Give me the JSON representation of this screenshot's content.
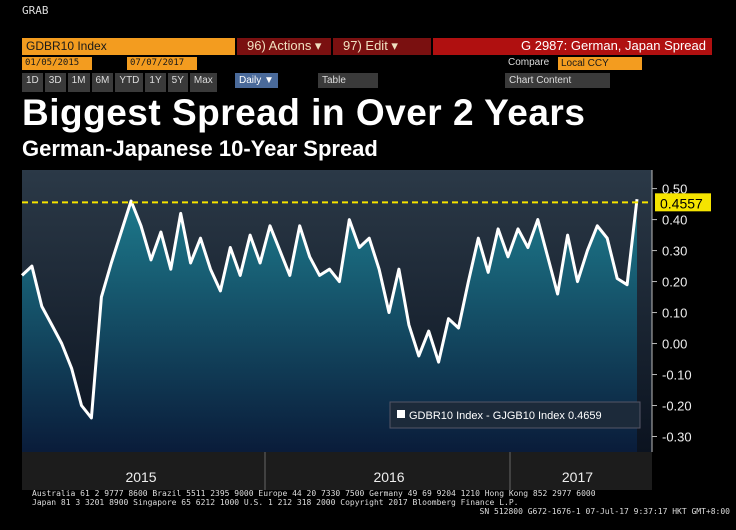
{
  "ui": {
    "grab": "GRAB",
    "ticker": "GDBR10 Index",
    "actions": "96) Actions ▾",
    "edit": "97) Edit ▾",
    "function": "G 2987: German, Japan Spread",
    "start_date": "01/05/2015",
    "end_date": "07/07/2017",
    "compare": "Compare",
    "currency": "Local CCY",
    "range_buttons": [
      "1D",
      "3D",
      "1M",
      "6M",
      "YTD",
      "1Y",
      "5Y",
      "Max"
    ],
    "frequency": "Daily ▼",
    "table": "Table",
    "chart_content": "Chart Content"
  },
  "chart_data": {
    "type": "line",
    "title": "Biggest Spread in Over 2 Years",
    "subtitle": "German-Japanese 10-Year Spread",
    "categories": [
      null,
      null,
      null,
      null,
      null,
      null,
      null,
      null,
      null,
      null,
      null,
      null,
      "2015",
      null,
      null,
      null,
      null,
      null,
      null,
      null,
      null,
      null,
      null,
      null,
      null,
      null,
      null,
      null,
      null,
      null,
      null,
      null,
      null,
      null,
      null,
      null,
      null,
      "2016",
      null,
      null,
      null,
      null,
      null,
      null,
      null,
      null,
      null,
      null,
      null,
      null,
      null,
      null,
      null,
      null,
      null,
      null,
      "2017",
      null,
      null,
      null,
      null,
      null,
      null
    ],
    "series": [
      {
        "name": "GDBR10 Index - GJGB10 Index",
        "color": "#ffffff",
        "values": [
          0.22,
          0.25,
          0.12,
          0.06,
          0.0,
          -0.08,
          -0.2,
          -0.24,
          0.15,
          0.26,
          0.36,
          0.46,
          0.38,
          0.27,
          0.36,
          0.24,
          0.42,
          0.26,
          0.34,
          0.24,
          0.17,
          0.31,
          0.22,
          0.35,
          0.26,
          0.38,
          0.3,
          0.22,
          0.38,
          0.28,
          0.22,
          0.24,
          0.2,
          0.4,
          0.31,
          0.34,
          0.24,
          0.1,
          0.24,
          0.06,
          -0.04,
          0.04,
          -0.06,
          0.08,
          0.05,
          0.2,
          0.34,
          0.23,
          0.37,
          0.28,
          0.37,
          0.31,
          0.4,
          0.28,
          0.16,
          0.35,
          0.2,
          0.3,
          0.38,
          0.34,
          0.21,
          0.19,
          0.4659
        ]
      }
    ],
    "ylim": [
      -0.35,
      0.56
    ],
    "yticks": [
      {
        "value": 0.5,
        "label": "0.50"
      },
      {
        "value": 0.4,
        "label": "0.40"
      },
      {
        "value": 0.3,
        "label": "0.30"
      },
      {
        "value": 0.2,
        "label": "0.20"
      },
      {
        "value": 0.1,
        "label": "0.10"
      },
      {
        "value": 0,
        "label": "0.00"
      },
      {
        "value": -0.1,
        "label": "-0.10"
      },
      {
        "value": -0.2,
        "label": "-0.20"
      },
      {
        "value": -0.3,
        "label": "-0.30"
      }
    ],
    "reference_line": {
      "value": 0.4557,
      "color": "#f5e400"
    }
  },
  "footer": {
    "line1": "Australia 61 2 9777 8600 Brazil 5511 2395 9000 Europe 44 20 7330 7500 Germany 49 69 9204 1210 Hong Kong 852 2977 6000",
    "line2": "Japan 81 3 3201 8900     Singapore 65 6212 1000     U.S. 1 212 318 2000     Copyright 2017 Bloomberg Finance L.P.",
    "line3": "SN 512800 G672-1676-1 07-Jul-17  9:37:17 HKT  GMT+8:00"
  }
}
